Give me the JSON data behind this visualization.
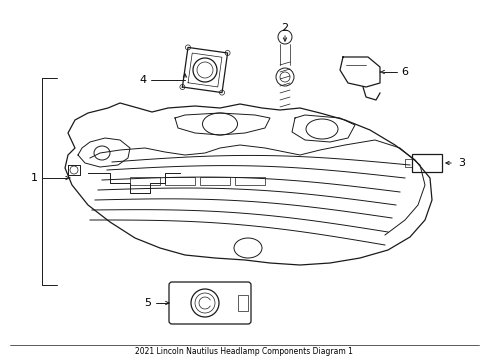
{
  "title": "2021 Lincoln Nautilus Headlamp Components Diagram 1",
  "background_color": "#ffffff",
  "line_color": "#1a1a1a",
  "label_color": "#000000",
  "fig_width": 4.89,
  "fig_height": 3.6,
  "dpi": 100
}
